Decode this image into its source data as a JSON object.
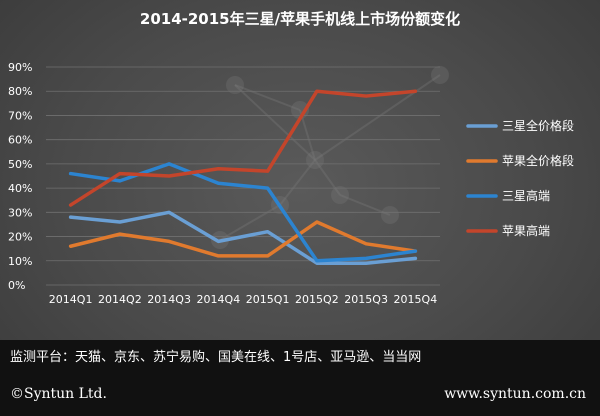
{
  "chart_data": {
    "type": "line",
    "title": "2014-2015年三星/苹果手机线上市场份额变化",
    "categories": [
      "2014Q1",
      "2014Q2",
      "2014Q3",
      "2014Q4",
      "2015Q1",
      "2015Q2",
      "2015Q3",
      "2015Q4"
    ],
    "series": [
      {
        "name": "三星全价格段",
        "color": "#6a9fd4",
        "values": [
          28,
          26,
          30,
          18,
          22,
          9,
          9,
          11
        ]
      },
      {
        "name": "苹果全价格段",
        "color": "#e07a2e",
        "values": [
          16,
          21,
          18,
          12,
          12,
          26,
          17,
          14
        ]
      },
      {
        "name": "三星高端",
        "color": "#2c84d0",
        "values": [
          46,
          43,
          50,
          42,
          40,
          10,
          11,
          14
        ]
      },
      {
        "name": "苹果高端",
        "color": "#c4452b",
        "values": [
          33,
          46,
          45,
          48,
          47,
          80,
          78,
          80
        ]
      }
    ],
    "y_ticks": [
      "0%",
      "10%",
      "20%",
      "30%",
      "40%",
      "50%",
      "60%",
      "70%",
      "80%",
      "90%"
    ],
    "ylim": [
      0,
      90
    ],
    "grid": true,
    "legend": "right"
  },
  "footer": {
    "platforms": "监测平台：天猫、京东、苏宁易购、国美在线、1号店、亚马逊、当当网",
    "copyright": "©Syntun Ltd.",
    "website": "www.syntun.com.cn"
  }
}
